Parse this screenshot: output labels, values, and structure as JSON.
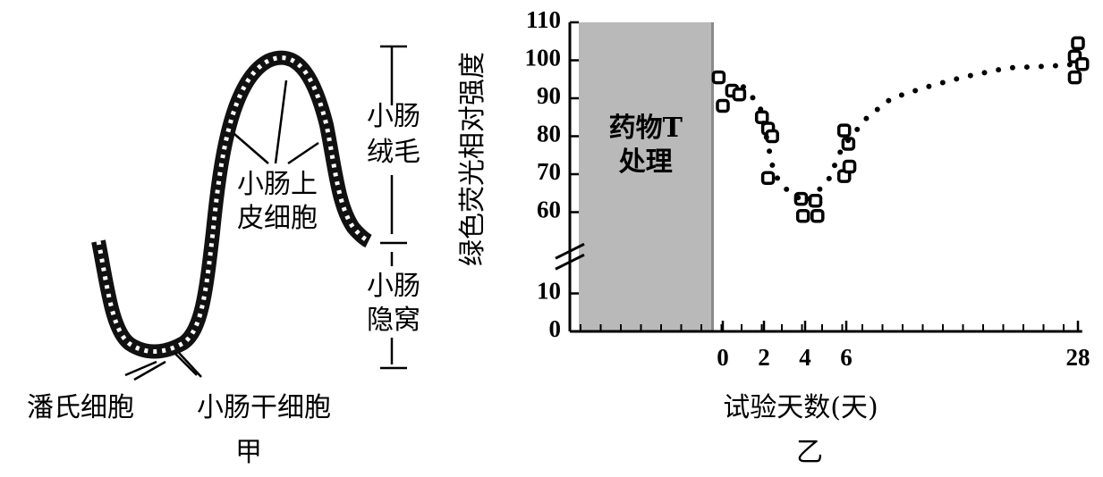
{
  "diagram": {
    "caption": "甲",
    "villus_label": [
      "小肠",
      "绒毛"
    ],
    "epithelial_label": [
      "小肠上",
      "皮细胞"
    ],
    "crypt_label": [
      "小肠",
      "隐窝"
    ],
    "paneth_label": "潘氏细胞",
    "stem_label": "小肠干细胞"
  },
  "chart_data": {
    "type": "scatter",
    "caption": "乙",
    "x_label": "试验天数(天)",
    "y_label": "绿色荧光相对强度",
    "treatment": {
      "label": [
        "药物T",
        "处理"
      ],
      "xlim": [
        -7,
        -0.5
      ],
      "color": "#b9b9b9"
    },
    "xlim": [
      -7,
      28.4
    ],
    "xticks": [
      0,
      2,
      4,
      6,
      28
    ],
    "ylim": [
      0,
      110
    ],
    "y_break": [
      15,
      53
    ],
    "yticks": [
      0,
      10,
      60,
      70,
      80,
      90,
      100,
      110
    ],
    "series": [
      {
        "type": "scatter",
        "color": "#000000",
        "x": [
          -0.2,
          0,
          0.45,
          0.8,
          1.9,
          2.2,
          2.4,
          2.2,
          3.8,
          4.5,
          3.9,
          4.6,
          5.9,
          6.2,
          5.9,
          6.3,
          28,
          27.7,
          28.4,
          27.7
        ],
        "values": [
          95.5,
          88,
          92,
          91,
          85,
          82,
          80,
          69,
          63.5,
          63,
          59,
          59,
          81.5,
          78,
          69.5,
          72,
          104.5,
          101,
          99,
          95.5
        ]
      },
      {
        "type": "line",
        "style": "dotted",
        "color": "#000000",
        "x": [
          1,
          1.8,
          2.5,
          3.1,
          4,
          5.1,
          5.8,
          8,
          10.3,
          13.7,
          17,
          21.3,
          25.5,
          28
        ],
        "values": [
          93,
          88,
          70,
          66,
          62.5,
          68,
          77,
          85,
          90,
          93,
          95.5,
          98,
          98.5,
          99
        ]
      }
    ]
  }
}
